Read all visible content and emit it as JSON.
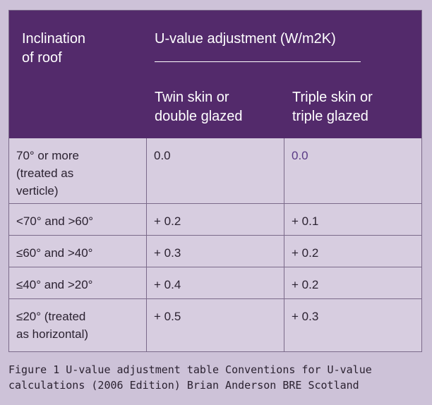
{
  "table": {
    "header": {
      "col1": "Inclination\nof roof",
      "group": "U-value adjustment (W/m2K)",
      "col2": "Twin skin or\ndouble glazed",
      "col3": "Triple skin or\ntriple glazed"
    },
    "rows": [
      {
        "inclination": "70° or more\n(treated as\nverticle)",
        "twin": "0.0",
        "triple": "0.0"
      },
      {
        "inclination": "<70° and >60°",
        "twin": "+ 0.2",
        "triple": "+ 0.1"
      },
      {
        "inclination": "≤60° and >40°",
        "twin": "+ 0.3",
        "triple": "+ 0.2"
      },
      {
        "inclination": "≤40° and >20°",
        "twin": "+ 0.4",
        "triple": "+ 0.2"
      },
      {
        "inclination": "≤20° (treated\nas horizontal)",
        "twin": "+ 0.5",
        "triple": "+ 0.3"
      }
    ]
  },
  "caption": "Figure 1 U-value adjustment table Conventions for U-value\ncalculations (2006 Edition) Brian Anderson BRE Scotland",
  "colors": {
    "header_bg": "#532a6b",
    "body_bg": "#d7cde0",
    "page_bg": "#cdc2d8",
    "accent_text": "#5a3a86"
  }
}
